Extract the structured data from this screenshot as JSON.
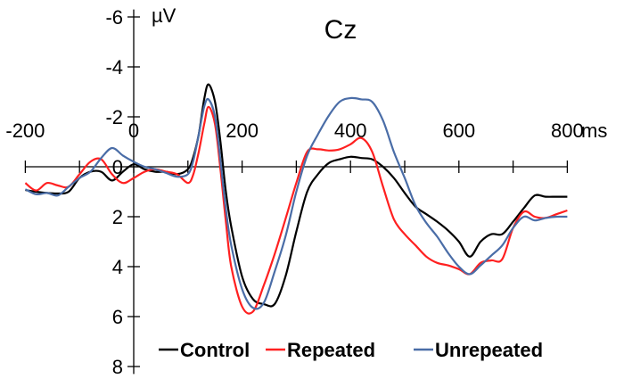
{
  "chart_data": {
    "type": "line",
    "title": "Cz",
    "xlabel": "ms",
    "ylabel": "µV",
    "xlim": [
      -200,
      800
    ],
    "ylim": [
      -6,
      8
    ],
    "y_inverted": true,
    "grid": false,
    "legend_position": "bottom",
    "x_tick_labels": [
      "-200",
      "0",
      "200",
      "400",
      "600",
      "800"
    ],
    "x_ticks": [
      -200,
      -100,
      0,
      100,
      200,
      300,
      400,
      500,
      600,
      700,
      800
    ],
    "y_tick_labels": [
      "-6",
      "-4",
      "-2",
      "0",
      "2",
      "4",
      "6",
      "8"
    ],
    "y_ticks": [
      -6,
      -4,
      -2,
      0,
      2,
      4,
      6,
      8
    ],
    "x": [
      -200,
      -180,
      -160,
      -140,
      -120,
      -100,
      -80,
      -60,
      -40,
      -20,
      0,
      20,
      40,
      60,
      80,
      100,
      110,
      120,
      130,
      138,
      150,
      160,
      170,
      180,
      200,
      220,
      240,
      260,
      280,
      300,
      320,
      340,
      360,
      380,
      400,
      420,
      440,
      460,
      480,
      500,
      520,
      540,
      560,
      580,
      600,
      620,
      640,
      660,
      680,
      700,
      720,
      740,
      760,
      780,
      800
    ],
    "series": [
      {
        "name": "Control",
        "color": "#000000",
        "values": [
          0.93,
          1.0,
          1.05,
          1.07,
          1.0,
          0.45,
          0.2,
          0.2,
          0.55,
          0.2,
          -0.1,
          0.1,
          0.2,
          0.2,
          0.3,
          0.1,
          -0.4,
          -1.3,
          -2.7,
          -3.3,
          -2.6,
          -1.0,
          1.0,
          2.4,
          4.4,
          5.3,
          5.5,
          5.5,
          4.4,
          2.6,
          1.0,
          0.3,
          -0.15,
          -0.3,
          -0.4,
          -0.35,
          -0.3,
          0.0,
          0.45,
          1.05,
          1.6,
          1.9,
          2.2,
          2.55,
          3.0,
          3.6,
          3.0,
          2.7,
          2.7,
          2.2,
          1.65,
          1.15,
          1.2,
          1.2,
          1.2
        ]
      },
      {
        "name": "Repeated",
        "color": "#ff2020",
        "values": [
          0.65,
          0.95,
          0.65,
          0.75,
          0.8,
          0.3,
          -0.2,
          -0.3,
          0.3,
          0.65,
          0.45,
          0.2,
          0.1,
          0.2,
          0.3,
          0.65,
          0.3,
          -0.6,
          -1.7,
          -2.4,
          -1.7,
          0.1,
          2.2,
          4.0,
          5.6,
          5.8,
          4.75,
          3.5,
          2.1,
          0.65,
          -0.6,
          -0.7,
          -0.65,
          -0.7,
          -0.9,
          -1.15,
          -0.6,
          0.8,
          2.1,
          2.7,
          3.15,
          3.6,
          3.85,
          3.95,
          4.1,
          4.3,
          3.85,
          3.75,
          3.7,
          2.45,
          1.8,
          2.0,
          2.05,
          1.9,
          1.75
        ]
      },
      {
        "name": "Unrepeated",
        "color": "#4a6da7",
        "values": [
          0.9,
          1.1,
          1.05,
          1.15,
          0.8,
          0.45,
          0.2,
          -0.35,
          -0.75,
          -0.45,
          -0.2,
          0.0,
          0.1,
          0.25,
          0.4,
          0.3,
          -0.25,
          -1.3,
          -2.4,
          -2.7,
          -2.0,
          -0.25,
          1.7,
          3.15,
          4.9,
          5.65,
          5.45,
          4.2,
          2.8,
          1.0,
          -0.45,
          -1.3,
          -2.05,
          -2.6,
          -2.75,
          -2.7,
          -2.6,
          -1.85,
          -0.6,
          0.45,
          1.55,
          2.25,
          2.8,
          3.45,
          4.0,
          4.3,
          3.95,
          3.55,
          3.15,
          2.45,
          2.0,
          2.15,
          2.05,
          2.0,
          2.0
        ]
      }
    ]
  }
}
